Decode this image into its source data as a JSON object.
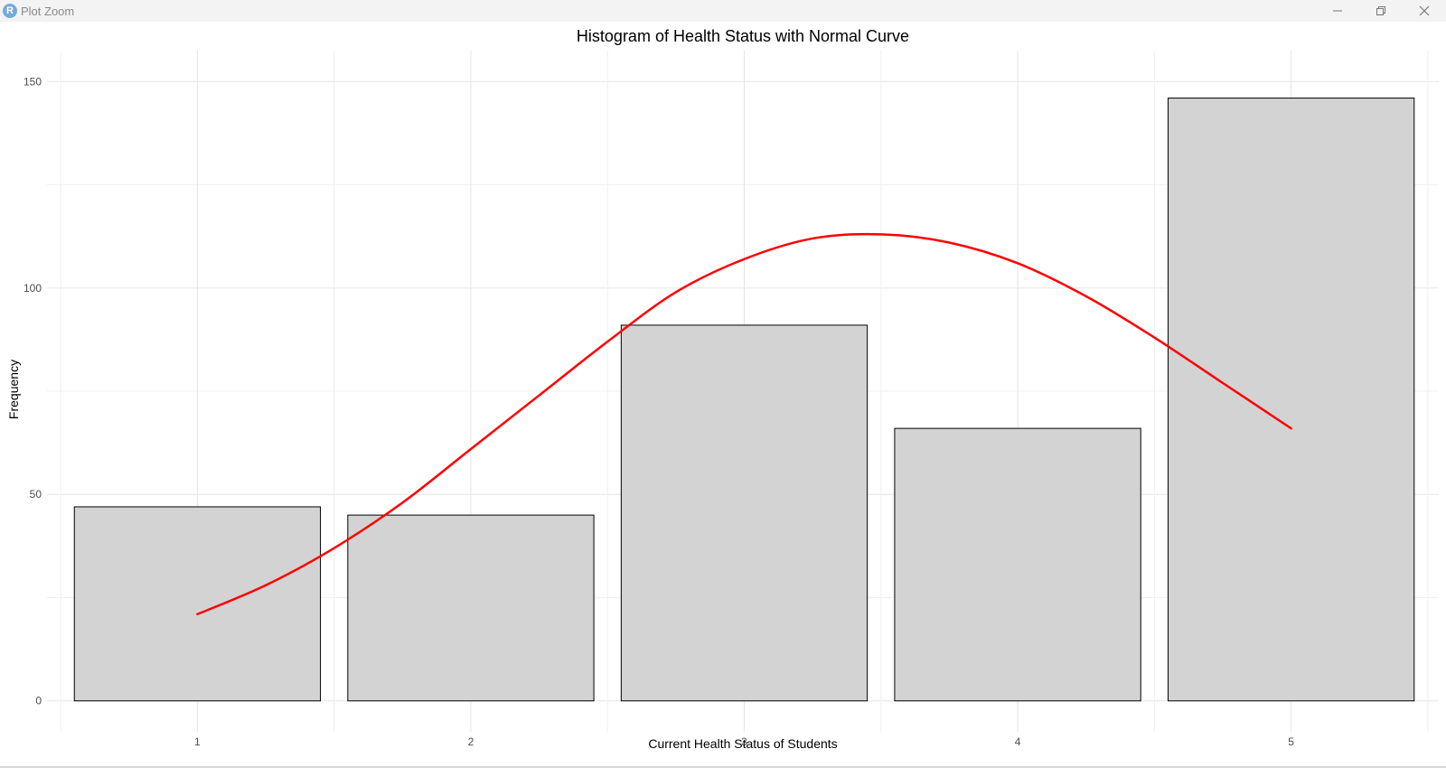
{
  "window": {
    "title": "Plot Zoom",
    "app_icon_letter": "R"
  },
  "chart_data": {
    "type": "bar",
    "title": "Histogram of Health Status with Normal Curve",
    "xlabel": "Current Health Status of Students",
    "ylabel": "Frequency",
    "categories": [
      "1",
      "2",
      "3",
      "4",
      "5"
    ],
    "x": [
      1,
      2,
      3,
      4,
      5
    ],
    "values": [
      47,
      45,
      91,
      66,
      146
    ],
    "xlim": [
      0.5,
      5.5
    ],
    "ylim": [
      0,
      150
    ],
    "yticks": [
      0,
      50,
      100,
      150
    ],
    "grid": true,
    "bar_fill": "#d3d3d3",
    "bar_stroke": "#000000",
    "curve": {
      "color": "#ff0000",
      "x": [
        1,
        1.25,
        1.5,
        1.75,
        2,
        2.25,
        2.5,
        2.75,
        3,
        3.25,
        3.5,
        3.75,
        4,
        4.25,
        4.5,
        4.75,
        5
      ],
      "y": [
        21,
        28,
        37,
        48,
        61,
        74,
        87,
        99,
        107,
        112,
        113,
        111,
        106,
        98,
        88,
        77,
        66
      ]
    }
  }
}
